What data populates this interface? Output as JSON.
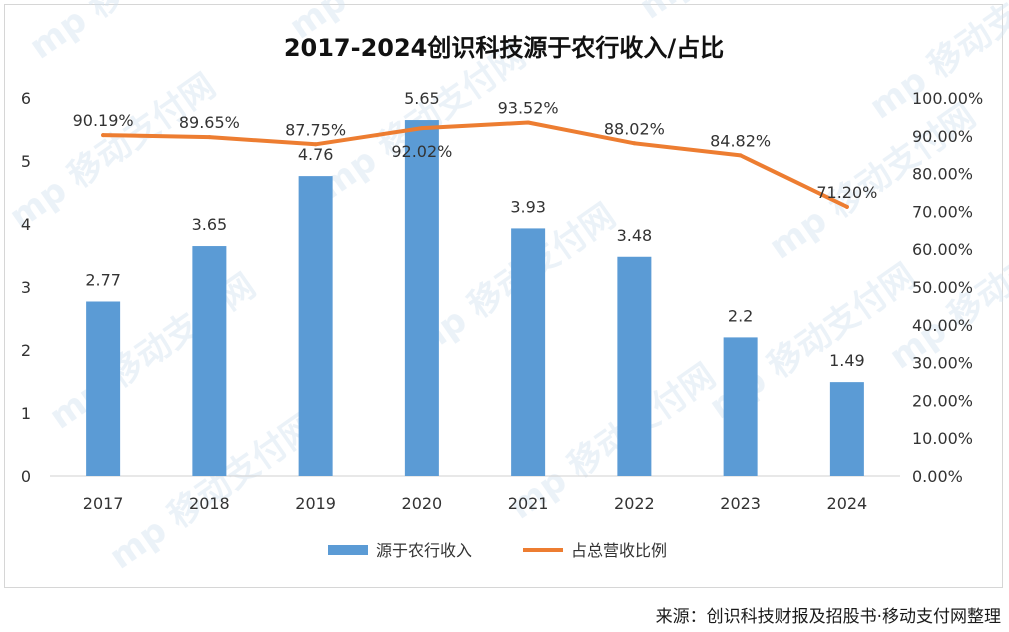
{
  "chart_data": {
    "type": "bar",
    "title": "2017-2024创识科技源于农行收入/占比",
    "categories": [
      "2017",
      "2018",
      "2019",
      "2020",
      "2021",
      "2022",
      "2023",
      "2024"
    ],
    "series": [
      {
        "name": "源于农行收入",
        "type": "bar",
        "axis": "left",
        "values": [
          2.77,
          3.65,
          4.76,
          5.65,
          3.93,
          3.48,
          2.2,
          1.49
        ],
        "labels": [
          "2.77",
          "3.65",
          "4.76",
          "5.65",
          "3.93",
          "3.48",
          "2.2",
          "1.49"
        ],
        "color": "#5b9bd5"
      },
      {
        "name": "占总营收比例",
        "type": "line",
        "axis": "right",
        "values": [
          90.19,
          89.65,
          87.75,
          92.02,
          93.52,
          88.02,
          84.82,
          71.2
        ],
        "labels": [
          "90.19%",
          "89.65%",
          "87.75%",
          "92.02%",
          "93.52%",
          "88.02%",
          "84.82%",
          "71.20%"
        ],
        "color": "#ed7d31"
      }
    ],
    "y_left": {
      "min": 0,
      "max": 6,
      "ticks": [
        "0",
        "1",
        "2",
        "3",
        "4",
        "5",
        "6"
      ]
    },
    "y_right": {
      "min": 0,
      "max": 100,
      "ticks": [
        "0.00%",
        "10.00%",
        "20.00%",
        "30.00%",
        "40.00%",
        "50.00%",
        "60.00%",
        "70.00%",
        "80.00%",
        "90.00%",
        "100.00%"
      ]
    },
    "grid": false,
    "legend_position": "bottom"
  },
  "watermark": "移动支付网",
  "source_note": "来源：创识科技财报及招股书·移动支付网整理"
}
